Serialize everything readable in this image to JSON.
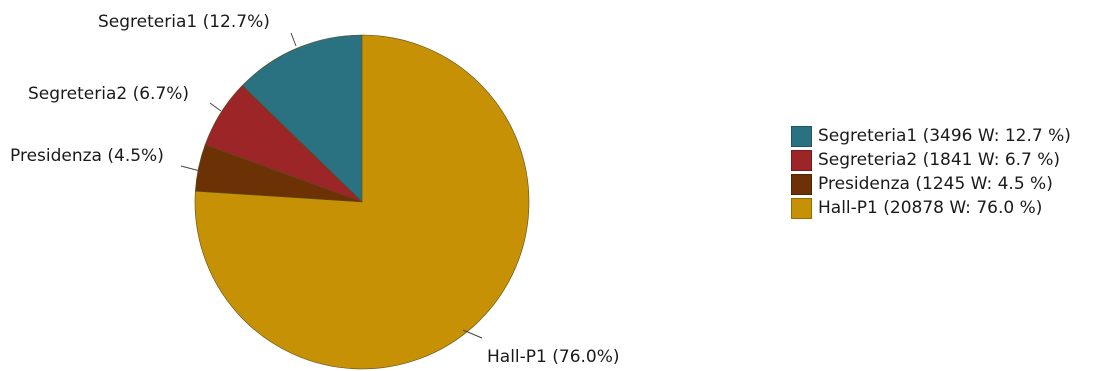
{
  "chart_data": {
    "type": "pie",
    "title": "",
    "start_angle_deg": 0,
    "direction": "counterclockwise",
    "slices": [
      {
        "name": "Segreteria1",
        "value": 3496,
        "unit": "W",
        "percent": 12.7,
        "slice_label": "Segreteria1 (12.7%)",
        "legend_label": "Segreteria1 (3496 W: 12.7 %)",
        "color": "#2a7181"
      },
      {
        "name": "Segreteria2",
        "value": 1841,
        "unit": "W",
        "percent": 6.7,
        "slice_label": "Segreteria2 (6.7%)",
        "legend_label": "Segreteria2 (1841 W: 6.7 %)",
        "color": "#9c2528"
      },
      {
        "name": "Presidenza",
        "value": 1245,
        "unit": "W",
        "percent": 4.5,
        "slice_label": "Presidenza (4.5%)",
        "legend_label": "Presidenza (1245 W: 4.5 %)",
        "color": "#6c3206"
      },
      {
        "name": "Hall-P1",
        "value": 20878,
        "unit": "W",
        "percent": 76.0,
        "slice_label": "Hall-P1 (76.0%)",
        "legend_label": "Hall-P1 (20878 W: 76.0 %)",
        "color": "#c79105"
      }
    ],
    "legend_position": "right"
  }
}
